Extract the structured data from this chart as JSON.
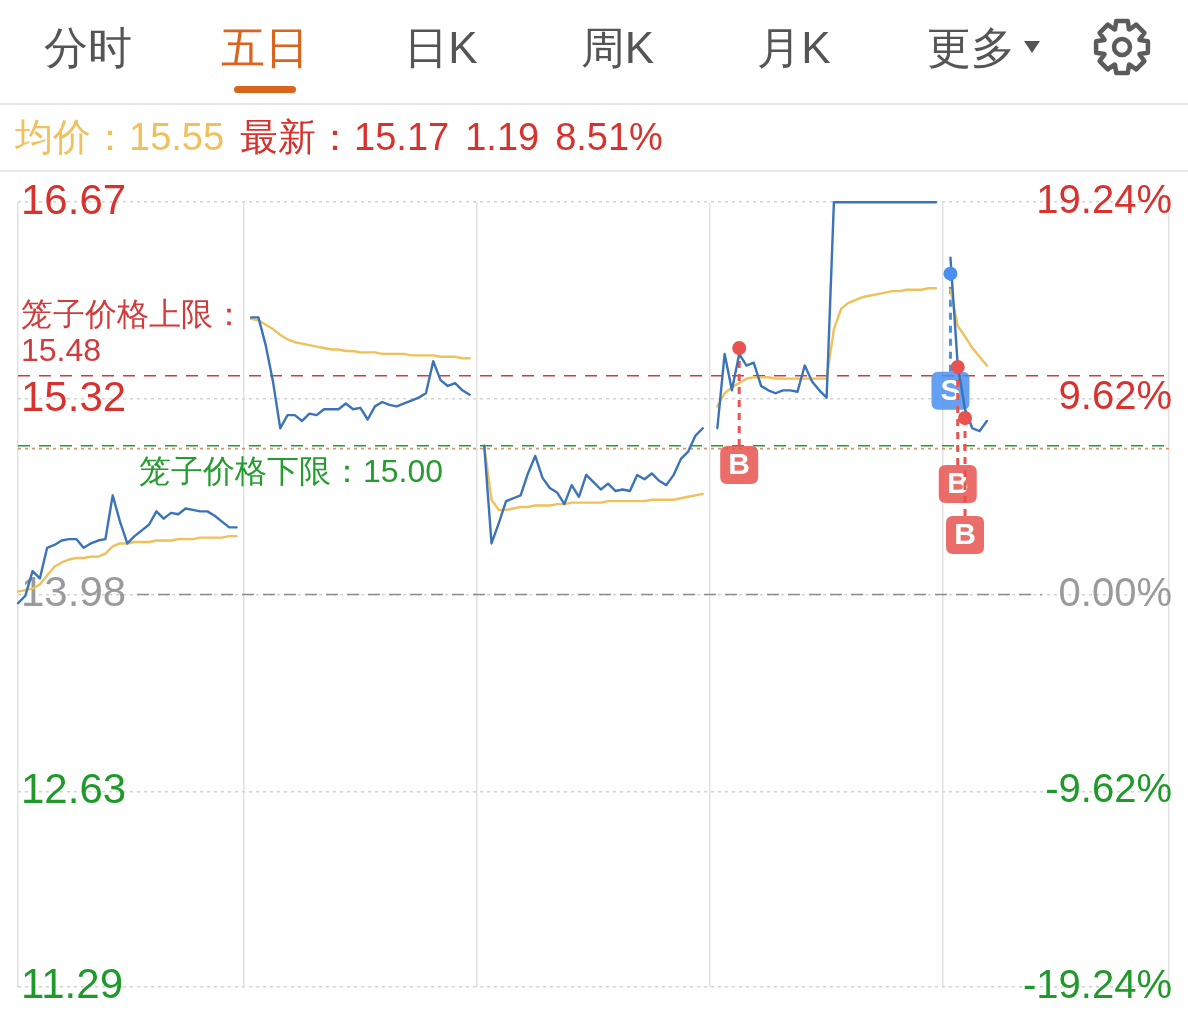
{
  "chart_data": [
    {
      "type": "other",
      "annotations": [
        "分时",
        "五日",
        "日K",
        "周K",
        "月K",
        "更多"
      ]
    },
    {
      "type": "line",
      "annotations": [
        "均价：15.55",
        "最新：15.17",
        "1.19",
        "8.51%",
        {
          "text": "B",
          "y": 15.67
        },
        {
          "text": "S",
          "y": 16.18
        },
        {
          "text": "B",
          "y": 15.54
        },
        {
          "text": "B",
          "y": 15.19
        }
      ],
      "categories": [
        null,
        null,
        null,
        null,
        null,
        null,
        null,
        null,
        null,
        null,
        null,
        null,
        null,
        null,
        null,
        null,
        null,
        null,
        null,
        null,
        null,
        null,
        null,
        null,
        null,
        null,
        null,
        null,
        null,
        null,
        null,
        null,
        null,
        null,
        null,
        null,
        null,
        null,
        null,
        null,
        null,
        null,
        null,
        null,
        null,
        null,
        null,
        null,
        null,
        null,
        null,
        null,
        null,
        null,
        null,
        null,
        null,
        null,
        null,
        null,
        null,
        null,
        null,
        null,
        null,
        null,
        null,
        null,
        null,
        null,
        null,
        null,
        null,
        null,
        null,
        null,
        null,
        null,
        null,
        null,
        null,
        null,
        null,
        null,
        null,
        null,
        null,
        null,
        null,
        null,
        null,
        null,
        null,
        null,
        null,
        null,
        null,
        null,
        null,
        null,
        null,
        null,
        null,
        null,
        null,
        null,
        null,
        null,
        null,
        null,
        null,
        null,
        null,
        null,
        null,
        null,
        null,
        null,
        null,
        null,
        null,
        null,
        null,
        null,
        null,
        null,
        null,
        null,
        null,
        null,
        null,
        null,
        null,
        null,
        null,
        null,
        null,
        null,
        null,
        null,
        null,
        null,
        null,
        null,
        null,
        null,
        null,
        null,
        null,
        null,
        null,
        null,
        null,
        null,
        null,
        null,
        null,
        null,
        null
      ],
      "series": [
        {
          "color": "#f0c05a",
          "values": [
            14.0,
            14.01,
            14.02,
            14.05,
            14.11,
            14.17,
            14.2,
            14.22,
            14.23,
            14.23,
            14.24,
            14.24,
            14.26,
            14.31,
            14.33,
            14.33,
            14.34,
            14.34,
            14.34,
            14.35,
            14.35,
            14.35,
            14.36,
            14.36,
            14.36,
            14.37,
            14.37,
            14.37,
            14.37,
            14.38,
            14.38,
            null,
            15.87,
            15.86,
            15.83,
            15.8,
            15.76,
            15.73,
            15.71,
            15.7,
            15.69,
            15.68,
            15.67,
            15.66,
            15.66,
            15.65,
            15.65,
            15.64,
            15.64,
            15.64,
            15.63,
            15.63,
            15.63,
            15.63,
            15.62,
            15.62,
            15.62,
            15.62,
            15.61,
            15.61,
            15.61,
            15.6,
            15.6,
            null,
            15.0,
            14.63,
            14.56,
            14.56,
            14.57,
            14.58,
            14.58,
            14.59,
            14.59,
            14.59,
            14.6,
            14.6,
            14.61,
            14.61,
            14.61,
            14.61,
            14.61,
            14.62,
            14.62,
            14.62,
            14.62,
            14.62,
            14.62,
            14.63,
            14.63,
            14.63,
            14.63,
            14.64,
            14.65,
            14.66,
            14.67,
            null,
            15.27,
            15.36,
            15.4,
            15.43,
            15.46,
            15.47,
            15.47,
            15.47,
            15.46,
            15.46,
            15.46,
            15.46,
            15.46,
            15.46,
            15.46,
            15.46,
            15.8,
            15.94,
            15.98,
            16.0,
            16.02,
            16.03,
            16.04,
            16.05,
            16.06,
            16.06,
            16.07,
            16.07,
            16.07,
            16.08,
            16.08,
            null,
            16.07,
            15.82,
            15.75,
            15.67,
            15.61,
            15.55,
            null,
            null,
            null,
            null,
            null,
            null,
            null,
            null,
            null,
            null,
            null,
            null,
            null,
            null,
            null,
            null,
            null,
            null,
            null,
            null,
            null,
            null,
            null,
            null,
            null
          ]
        },
        {
          "color": "#3b73b9",
          "values": [
            13.92,
            13.97,
            14.14,
            14.09,
            14.3,
            14.32,
            14.35,
            14.36,
            14.36,
            14.3,
            14.33,
            14.35,
            14.36,
            14.66,
            14.48,
            14.33,
            14.38,
            14.42,
            14.46,
            14.55,
            14.5,
            14.54,
            14.53,
            14.57,
            14.56,
            14.55,
            14.55,
            14.52,
            14.48,
            14.44,
            14.44,
            null,
            15.88,
            15.88,
            15.69,
            15.44,
            15.12,
            15.21,
            15.21,
            15.17,
            15.22,
            15.21,
            15.25,
            15.25,
            15.25,
            15.29,
            15.25,
            15.26,
            15.18,
            15.27,
            15.3,
            15.28,
            15.27,
            15.29,
            15.31,
            15.33,
            15.36,
            15.58,
            15.45,
            15.41,
            15.43,
            15.38,
            15.35,
            null,
            15.0,
            14.33,
            14.47,
            14.62,
            14.64,
            14.66,
            14.81,
            14.93,
            14.78,
            14.71,
            14.68,
            14.6,
            14.73,
            14.65,
            14.8,
            14.75,
            14.7,
            14.74,
            14.69,
            14.7,
            14.69,
            14.8,
            14.77,
            14.81,
            14.76,
            14.73,
            14.8,
            14.91,
            14.96,
            15.07,
            15.12,
            null,
            15.12,
            15.63,
            15.38,
            15.63,
            15.55,
            15.57,
            15.41,
            15.38,
            15.36,
            15.38,
            15.38,
            15.37,
            15.55,
            15.44,
            15.38,
            15.33,
            16.67,
            16.67,
            16.67,
            16.67,
            16.67,
            16.67,
            16.67,
            16.67,
            16.67,
            16.67,
            16.67,
            16.67,
            16.67,
            16.67,
            16.67,
            null,
            16.29,
            15.55,
            15.25,
            15.12,
            15.1,
            15.17,
            null,
            null,
            null,
            null,
            null,
            null,
            null,
            null,
            null,
            null,
            null,
            null,
            null,
            null,
            null,
            null,
            null,
            null,
            null,
            null,
            null,
            null,
            null,
            null,
            null
          ]
        },
        {
          "type": "scatter",
          "marker": "circle",
          "color": "#e8534f",
          "values": [
            null,
            null,
            null,
            null,
            null,
            null,
            null,
            null,
            null,
            null,
            null,
            null,
            null,
            null,
            null,
            null,
            null,
            null,
            null,
            null,
            null,
            null,
            null,
            null,
            null,
            null,
            null,
            null,
            null,
            null,
            null,
            null,
            null,
            null,
            null,
            null,
            null,
            null,
            null,
            null,
            null,
            null,
            null,
            null,
            null,
            null,
            null,
            null,
            null,
            null,
            null,
            null,
            null,
            null,
            null,
            null,
            null,
            null,
            null,
            null,
            null,
            null,
            null,
            null,
            null,
            null,
            null,
            null,
            null,
            null,
            null,
            null,
            null,
            null,
            null,
            null,
            null,
            null,
            null,
            null,
            null,
            null,
            null,
            null,
            null,
            null,
            null,
            null,
            null,
            null,
            null,
            null,
            null,
            null,
            null,
            null,
            null,
            null,
            null,
            15.67,
            null,
            null,
            null,
            null,
            null,
            null,
            null,
            null,
            null,
            null,
            null,
            null,
            null,
            null,
            null,
            null,
            null,
            null,
            null,
            null,
            null,
            null,
            null,
            null,
            null,
            null,
            null,
            null,
            null,
            15.54,
            15.19,
            null,
            null,
            null,
            null,
            null,
            null,
            null,
            null,
            null,
            null,
            null,
            null,
            null,
            null,
            null,
            null,
            null,
            null,
            null,
            null,
            null,
            null,
            null,
            null,
            null,
            null,
            null,
            null
          ]
        },
        {
          "type": "scatter",
          "marker": "circle",
          "color": "#4a8ff0",
          "values": [
            null,
            null,
            null,
            null,
            null,
            null,
            null,
            null,
            null,
            null,
            null,
            null,
            null,
            null,
            null,
            null,
            null,
            null,
            null,
            null,
            null,
            null,
            null,
            null,
            null,
            null,
            null,
            null,
            null,
            null,
            null,
            null,
            null,
            null,
            null,
            null,
            null,
            null,
            null,
            null,
            null,
            null,
            null,
            null,
            null,
            null,
            null,
            null,
            null,
            null,
            null,
            null,
            null,
            null,
            null,
            null,
            null,
            null,
            null,
            null,
            null,
            null,
            null,
            null,
            null,
            null,
            null,
            null,
            null,
            null,
            null,
            null,
            null,
            null,
            null,
            null,
            null,
            null,
            null,
            null,
            null,
            null,
            null,
            null,
            null,
            null,
            null,
            null,
            null,
            null,
            null,
            null,
            null,
            null,
            null,
            null,
            null,
            null,
            null,
            null,
            null,
            null,
            null,
            null,
            null,
            null,
            null,
            null,
            null,
            null,
            null,
            null,
            null,
            null,
            null,
            null,
            null,
            null,
            null,
            null,
            null,
            null,
            null,
            null,
            null,
            null,
            null,
            null,
            16.18,
            null,
            null,
            null,
            null,
            null,
            null,
            null,
            null,
            null,
            null,
            null,
            null,
            null,
            null,
            null,
            null,
            null,
            null,
            null,
            null,
            null,
            null,
            null,
            null,
            null,
            null,
            null,
            null,
            null,
            null
          ]
        }
      ],
      "ylim": [
        11.29,
        16.67
      ],
      "yticks": [
        11.29,
        12.63,
        13.98,
        15.32,
        16.67
      ],
      "y2lim": [
        -19.24,
        19.24
      ],
      "y2ticks": [
        {
          "value": -19.24,
          "label": "-19.24%"
        },
        {
          "value": -9.62,
          "label": "-9.62%"
        },
        {
          "value": 0,
          "label": "0.00%"
        },
        {
          "value": 9.62,
          "label": "9.62%"
        },
        {
          "value": 19.24,
          "label": "19.24%"
        }
      ],
      "ref_lines": [
        {
          "axis": "y",
          "value": 15.48,
          "label": "笼子价格上限：15.48",
          "color": "#d23b3b",
          "line_style": "dashed"
        },
        {
          "axis": "y",
          "value": 15.0,
          "label": "笼子价格下限：15.00",
          "color": "#259c30",
          "line_style": "dashed"
        },
        {
          "axis": "y",
          "value": 14.98,
          "color": "#d9936e",
          "line_style": "dotted"
        },
        {
          "axis": "y",
          "value": 13.98,
          "color": "#8c8c8c",
          "line_style": "dashed"
        }
      ],
      "grid": true
    }
  ]
}
